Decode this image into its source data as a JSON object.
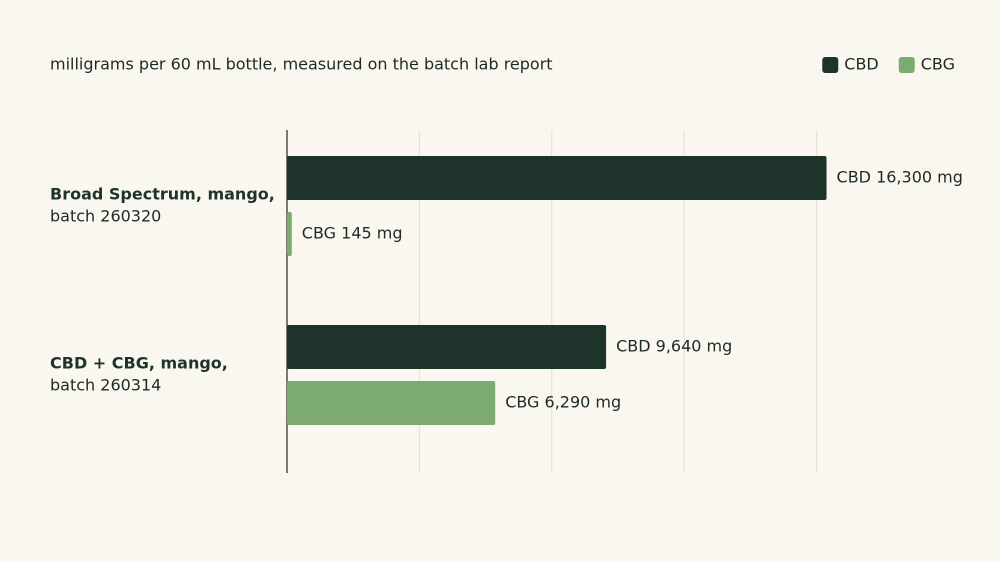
{
  "chart_data": {
    "type": "bar",
    "orientation": "horizontal",
    "subtitle": "milligrams per 60 mL bottle, measured on the batch lab report",
    "categories": [
      {
        "name": "Broad Spectrum, mango,",
        "batch": "batch 260320"
      },
      {
        "name": "CBD + CBG, mango,",
        "batch": "batch 260314"
      }
    ],
    "series": [
      {
        "name": "CBD",
        "color": "#1e3329",
        "values": [
          16300,
          9640
        ],
        "value_labels": [
          "CBD 16,300 mg",
          "CBD 9,640 mg"
        ]
      },
      {
        "name": "CBG",
        "color": "#7daa6e",
        "values": [
          145,
          6290
        ],
        "value_labels": [
          "CBG 145 mg",
          "CBG 6,290 mg"
        ]
      }
    ],
    "xlim": [
      0,
      20000
    ],
    "xticks": [
      0,
      4000,
      8000,
      12000,
      16000
    ],
    "grid": true,
    "legend": "top-right"
  }
}
